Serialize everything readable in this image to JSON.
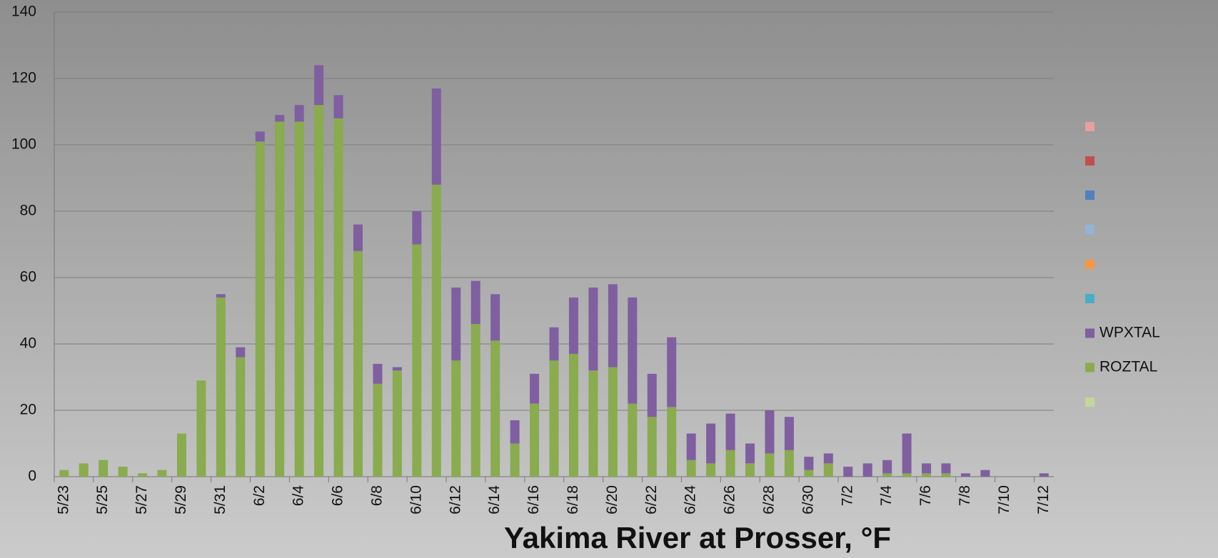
{
  "chart_data": {
    "type": "bar",
    "stacked": true,
    "title": "Yakima River at Prosser, °F",
    "categories": [
      "5/23",
      null,
      "5/25",
      null,
      "5/27",
      null,
      "5/29",
      null,
      "5/31",
      null,
      "6/2",
      null,
      "6/4",
      null,
      "6/6",
      null,
      "6/8",
      null,
      "6/10",
      null,
      "6/12",
      null,
      "6/14",
      null,
      "6/16",
      null,
      "6/18",
      null,
      "6/20",
      null,
      "6/22",
      null,
      "6/24",
      null,
      "6/26",
      null,
      "6/28",
      null,
      "6/30",
      null,
      "7/2",
      null,
      "7/4",
      null,
      "7/6",
      null,
      "7/8",
      null,
      "7/10",
      null,
      "7/12"
    ],
    "series": [
      {
        "name": "ROZTAL",
        "color": "#8aab4e",
        "values": [
          2,
          4,
          5,
          3,
          1,
          2,
          13,
          29,
          54,
          36,
          101,
          107,
          107,
          112,
          108,
          68,
          28,
          32,
          70,
          88,
          35,
          46,
          41,
          10,
          22,
          35,
          37,
          32,
          33,
          22,
          18,
          21,
          5,
          4,
          8,
          4,
          7,
          8,
          2,
          4,
          0,
          0,
          1,
          1,
          1,
          1,
          0,
          0,
          0,
          0,
          0
        ]
      },
      {
        "name": "WPXTAL",
        "color": "#7f5fa0",
        "values": [
          0,
          0,
          0,
          0,
          0,
          0,
          0,
          0,
          1,
          3,
          3,
          2,
          5,
          12,
          7,
          8,
          6,
          1,
          10,
          29,
          22,
          13,
          14,
          7,
          9,
          10,
          17,
          25,
          25,
          32,
          13,
          21,
          8,
          12,
          11,
          6,
          13,
          10,
          4,
          3,
          3,
          4,
          4,
          12,
          3,
          3,
          1,
          2,
          0,
          0,
          1
        ]
      }
    ],
    "ylim": [
      0,
      140
    ],
    "yticks": [
      0,
      20,
      40,
      60,
      80,
      100,
      120,
      140
    ],
    "grid": true,
    "legend": "right"
  }
}
